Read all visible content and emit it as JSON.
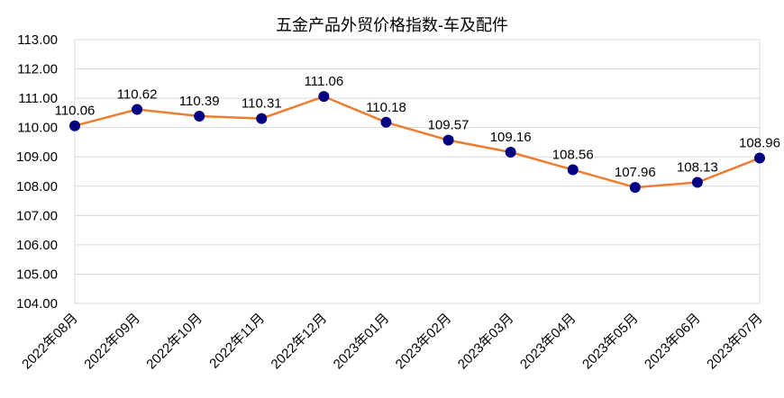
{
  "chart_data": {
    "type": "line",
    "title": "五金产品外贸价格指数-车及配件",
    "xlabel": "",
    "ylabel": "",
    "categories": [
      "2022年08月",
      "2022年09月",
      "2022年10月",
      "2022年11月",
      "2022年12月",
      "2023年01月",
      "2023年02月",
      "2023年03月",
      "2023年04月",
      "2023年05月",
      "2023年06月",
      "2023年07月"
    ],
    "values": [
      110.06,
      110.62,
      110.39,
      110.31,
      111.06,
      110.18,
      109.57,
      109.16,
      108.56,
      107.96,
      108.13,
      108.96
    ],
    "data_labels": [
      "110.06",
      "110.62",
      "110.39",
      "110.31",
      "111.06",
      "110.18",
      "109.57",
      "109.16",
      "108.56",
      "107.96",
      "108.13",
      "108.96"
    ],
    "ylim": [
      104,
      113
    ],
    "yticks": [
      "104.00",
      "105.00",
      "106.00",
      "107.00",
      "108.00",
      "109.00",
      "110.00",
      "111.00",
      "112.00",
      "113.00"
    ],
    "grid": true,
    "legend": "none",
    "colors": {
      "line": "#ED7D31",
      "marker": "#000080",
      "grid": "#D9D9D9",
      "text": "#000000"
    }
  }
}
